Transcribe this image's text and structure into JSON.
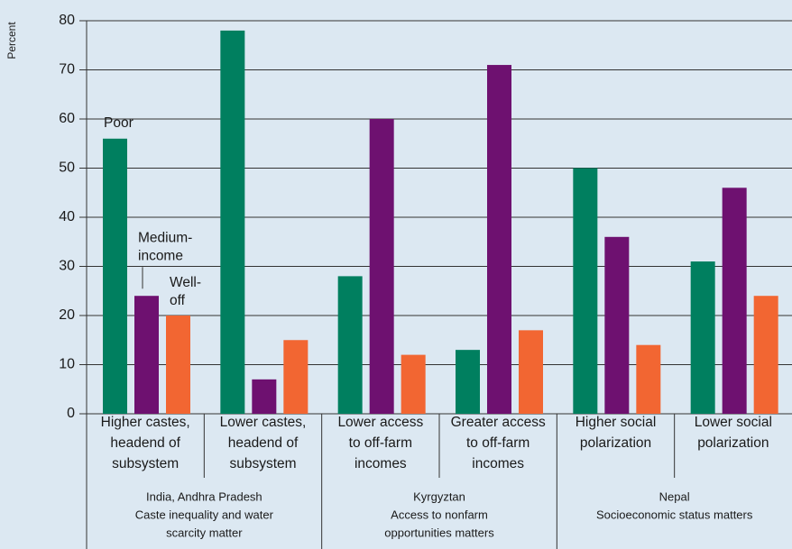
{
  "chart_data": {
    "type": "bar",
    "y_label": "Percent",
    "categories": [
      [
        "Higher castes,",
        "headend of",
        "subsystem"
      ],
      [
        "Lower castes,",
        "headend of",
        "subsystem"
      ],
      [
        "Lower access",
        "to off-farm",
        "incomes"
      ],
      [
        "Greater access",
        "to off-farm",
        "incomes"
      ],
      [
        "Higher social",
        "polarization"
      ],
      [
        "Lower social",
        "polarization"
      ]
    ],
    "groups": [
      [
        "India, Andhra Pradesh",
        "Caste inequality and water",
        "scarcity matter"
      ],
      [
        "Kyrgyztan",
        "Access to nonfarm",
        "opportunities matters"
      ],
      [
        "Nepal",
        "Socioeconomic status matters"
      ]
    ],
    "series": [
      {
        "label": [
          "Poor"
        ],
        "color": "#007f5f",
        "values": [
          56,
          78,
          28,
          13,
          50,
          31
        ]
      },
      {
        "label": [
          "Medium-",
          "income"
        ],
        "color": "#6e1170",
        "values": [
          24,
          7,
          60,
          71,
          36,
          46
        ]
      },
      {
        "label": [
          "Well-",
          "off"
        ],
        "color": "#f26632",
        "values": [
          20,
          15,
          12,
          17,
          14,
          24
        ]
      }
    ],
    "ylim": [
      0,
      80
    ],
    "yticks": [
      0,
      10,
      20,
      30,
      40,
      50,
      60,
      70,
      80
    ],
    "grid": true
  }
}
